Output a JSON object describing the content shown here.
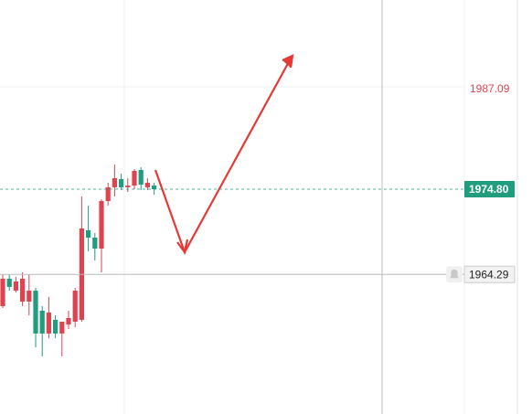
{
  "chart_data": {
    "type": "candlestick",
    "categories": [
      null,
      null,
      null,
      null,
      null,
      null,
      null,
      null,
      null,
      null,
      null,
      null,
      null,
      null,
      null,
      null,
      null,
      null,
      null,
      null,
      null,
      null,
      null,
      null
    ],
    "open": [
      1960.37,
      1963.75,
      1962.28,
      1960.93,
      1960.93,
      1962.28,
      1959.8,
      1956.99,
      1958.68,
      1956.99,
      1958.11,
      1958.45,
      1958.68,
      1969.73,
      1968.82,
      1967.47,
      1973.33,
      1975.03,
      1976.04,
      1975.03,
      1975.25,
      1977.17,
      1975.03,
      1975.25
    ],
    "high": [
      1964.31,
      1964.31,
      1963.98,
      1964.54,
      1964.31,
      1962.62,
      1960.37,
      1961.5,
      1959.24,
      1958.45,
      1959.8,
      1962.62,
      1973.9,
      1972.77,
      1969.39,
      1973.56,
      1975.59,
      1977.84,
      1976.72,
      1976.15,
      1977.28,
      1977.51,
      1976.15,
      1975.59
    ],
    "low": [
      1960.14,
      1962.28,
      1962.06,
      1960.37,
      1959.24,
      1955.29,
      1954.17,
      1956.42,
      1956.42,
      1954.17,
      1957.55,
      1957.77,
      1958.45,
      1967.13,
      1966.01,
      1964.54,
      1972.77,
      1973.9,
      1974.69,
      1974.46,
      1974.8,
      1974.69,
      1974.69,
      1974.12
    ],
    "close": [
      1963.75,
      1962.74,
      1963.41,
      1963.75,
      1962.28,
      1956.99,
      1956.99,
      1959.58,
      1956.99,
      1958.45,
      1958.9,
      1962.28,
      1969.95,
      1968.82,
      1967.47,
      1973.33,
      1975.03,
      1976.15,
      1975.03,
      1975.25,
      1977.06,
      1975.36,
      1975.59,
      1974.8
    ],
    "up_color": "#e04350",
    "down_color": "#1f9d7c",
    "ylim": [
      1947.06,
      1998.14
    ],
    "price_lines": [
      {
        "value": 1987.09,
        "label": "1987.09",
        "color": "#e04350"
      },
      {
        "value": 1974.8,
        "label": "1974.80",
        "color": "#1f9d7c"
      },
      {
        "value": 1964.29,
        "label": "1964.29",
        "color": "#999999"
      }
    ]
  }
}
